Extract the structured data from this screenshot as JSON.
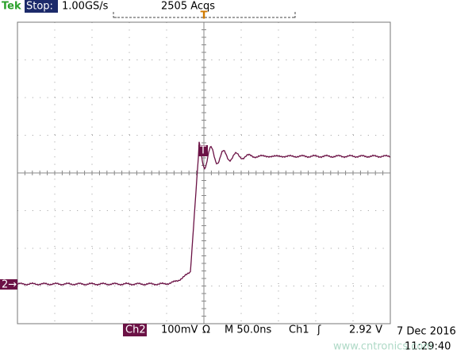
{
  "header": {
    "brand": "Tek",
    "state": "Stop:",
    "sample_rate": "1.00GS/s",
    "acquisitions": "2505 Acqs",
    "trigger_position": "T"
  },
  "markers": {
    "channel": "2→",
    "trigger_point": "T"
  },
  "footer": {
    "channel": "Ch2",
    "scale": "100mV",
    "coupling": "Ω",
    "timebase": "M 50.0ns",
    "trigger_source": "Ch1",
    "trigger_slope": "ʃ",
    "trigger_level": "2.92 V",
    "date": "7 Dec 2016",
    "time": "11:29:40"
  },
  "watermark": "www.cntronics.com"
}
